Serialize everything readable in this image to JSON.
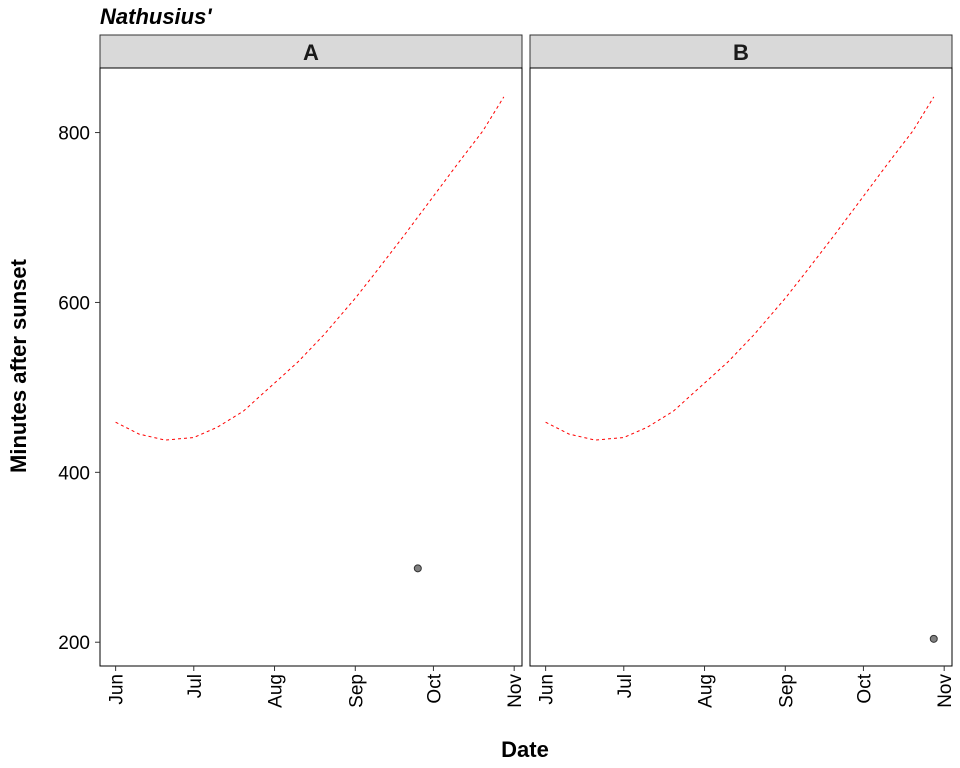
{
  "chart_data": {
    "type": "line",
    "title": "Nathusius'",
    "xlabel": "Date",
    "ylabel": "Minutes after sunset",
    "ylim": [
      172,
      876
    ],
    "y_ticks": [
      200,
      400,
      600,
      800
    ],
    "x_range": [
      "2020-05-26",
      "2020-11-04"
    ],
    "x_ticks": [
      {
        "date": "2020-06-01",
        "label": "Jun"
      },
      {
        "date": "2020-07-01",
        "label": "Jul"
      },
      {
        "date": "2020-08-01",
        "label": "Aug"
      },
      {
        "date": "2020-09-01",
        "label": "Sep"
      },
      {
        "date": "2020-10-01",
        "label": "Oct"
      },
      {
        "date": "2020-11-01",
        "label": "Nov"
      }
    ],
    "grid": false,
    "panels": [
      {
        "label": "A",
        "series": [
          {
            "kind": "line",
            "style": "dashed",
            "color": "#ff0000",
            "points": [
              {
                "x": "2020-06-01",
                "y": 459
              },
              {
                "x": "2020-06-10",
                "y": 445
              },
              {
                "x": "2020-06-20",
                "y": 438
              },
              {
                "x": "2020-07-01",
                "y": 441
              },
              {
                "x": "2020-07-10",
                "y": 453
              },
              {
                "x": "2020-07-20",
                "y": 472
              },
              {
                "x": "2020-08-01",
                "y": 505
              },
              {
                "x": "2020-08-10",
                "y": 530
              },
              {
                "x": "2020-08-20",
                "y": 562
              },
              {
                "x": "2020-09-01",
                "y": 605
              },
              {
                "x": "2020-09-10",
                "y": 640
              },
              {
                "x": "2020-09-20",
                "y": 680
              },
              {
                "x": "2020-10-01",
                "y": 725
              },
              {
                "x": "2020-10-10",
                "y": 762
              },
              {
                "x": "2020-10-20",
                "y": 802
              },
              {
                "x": "2020-10-28",
                "y": 842
              }
            ]
          },
          {
            "kind": "point",
            "color": "#808080",
            "points": [
              {
                "x": "2020-09-25",
                "y": 287
              }
            ]
          }
        ]
      },
      {
        "label": "B",
        "series": [
          {
            "kind": "line",
            "style": "dashed",
            "color": "#ff0000",
            "points": [
              {
                "x": "2020-06-01",
                "y": 459
              },
              {
                "x": "2020-06-10",
                "y": 445
              },
              {
                "x": "2020-06-20",
                "y": 438
              },
              {
                "x": "2020-07-01",
                "y": 441
              },
              {
                "x": "2020-07-10",
                "y": 453
              },
              {
                "x": "2020-07-20",
                "y": 472
              },
              {
                "x": "2020-08-01",
                "y": 505
              },
              {
                "x": "2020-08-10",
                "y": 530
              },
              {
                "x": "2020-08-20",
                "y": 562
              },
              {
                "x": "2020-09-01",
                "y": 605
              },
              {
                "x": "2020-09-10",
                "y": 640
              },
              {
                "x": "2020-09-20",
                "y": 680
              },
              {
                "x": "2020-10-01",
                "y": 725
              },
              {
                "x": "2020-10-10",
                "y": 762
              },
              {
                "x": "2020-10-20",
                "y": 802
              },
              {
                "x": "2020-10-28",
                "y": 842
              }
            ]
          },
          {
            "kind": "point",
            "color": "#808080",
            "points": [
              {
                "x": "2020-10-28",
                "y": 204
              }
            ]
          }
        ]
      }
    ]
  }
}
